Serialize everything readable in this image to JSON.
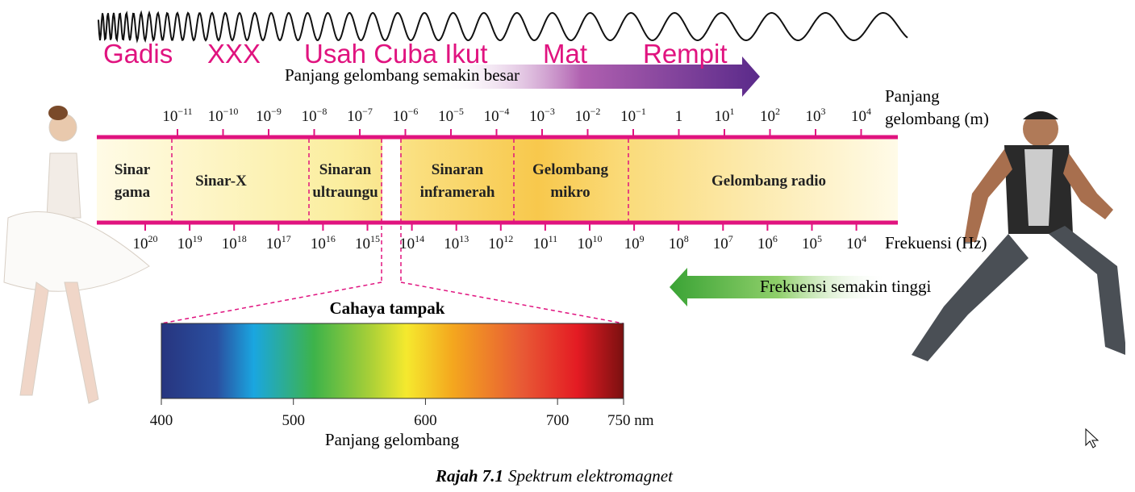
{
  "overlay_words": [
    "Gadis",
    "XXX",
    "Usah Cuba Ikut",
    "Mat",
    "Rempit"
  ],
  "wavelength_arrow": "Panjang gelombang semakin besar",
  "wavelength_axis": {
    "title_lines": [
      "Panjang",
      "gelombang (m)"
    ],
    "ticks": [
      {
        "base": "10",
        "exp": "−11"
      },
      {
        "base": "10",
        "exp": "−10"
      },
      {
        "base": "10",
        "exp": "−9"
      },
      {
        "base": "10",
        "exp": "−8"
      },
      {
        "base": "10",
        "exp": "−7"
      },
      {
        "base": "10",
        "exp": "−6"
      },
      {
        "base": "10",
        "exp": "−5"
      },
      {
        "base": "10",
        "exp": "−4"
      },
      {
        "base": "10",
        "exp": "−3"
      },
      {
        "base": "10",
        "exp": "−2"
      },
      {
        "base": "10",
        "exp": "−1"
      },
      {
        "base": "1"
      },
      {
        "base": "10",
        "exp": "1"
      },
      {
        "base": "10",
        "exp": "2"
      },
      {
        "base": "10",
        "exp": "3"
      },
      {
        "base": "10",
        "exp": "4"
      }
    ]
  },
  "bands": [
    {
      "lines": [
        "Sinar",
        "gama"
      ]
    },
    {
      "lines": [
        "Sinar-X"
      ]
    },
    {
      "lines": [
        "Sinaran",
        "ultraungu"
      ]
    },
    {
      "lines": [
        "Sinaran",
        "inframerah"
      ]
    },
    {
      "lines": [
        "Gelombang",
        "mikro"
      ]
    },
    {
      "lines": [
        "Gelombang radio"
      ]
    }
  ],
  "frequency_axis": {
    "title": "Frekuensi (Hz)",
    "ticks": [
      {
        "base": "10",
        "exp": "20"
      },
      {
        "base": "10",
        "exp": "19"
      },
      {
        "base": "10",
        "exp": "18"
      },
      {
        "base": "10",
        "exp": "17"
      },
      {
        "base": "10",
        "exp": "16"
      },
      {
        "base": "10",
        "exp": "15"
      },
      {
        "base": "10",
        "exp": "14"
      },
      {
        "base": "10",
        "exp": "13"
      },
      {
        "base": "10",
        "exp": "12"
      },
      {
        "base": "10",
        "exp": "11"
      },
      {
        "base": "10",
        "exp": "10"
      },
      {
        "base": "10",
        "exp": "9"
      },
      {
        "base": "10",
        "exp": "8"
      },
      {
        "base": "10",
        "exp": "7"
      },
      {
        "base": "10",
        "exp": "6"
      },
      {
        "base": "10",
        "exp": "5"
      },
      {
        "base": "10",
        "exp": "4"
      }
    ]
  },
  "frequency_arrow": "Frekuensi semakin tinggi",
  "visible_spectrum": {
    "title": "Cahaya tampak",
    "xlabel": "Panjang gelombang",
    "xlim": [
      400,
      750
    ],
    "xticks": [
      400,
      500,
      600,
      700,
      {
        "value": 750,
        "label": "750 nm"
      }
    ]
  },
  "caption": {
    "number": "Rajah 7.1",
    "text": "Spektrum elektromagnet"
  }
}
